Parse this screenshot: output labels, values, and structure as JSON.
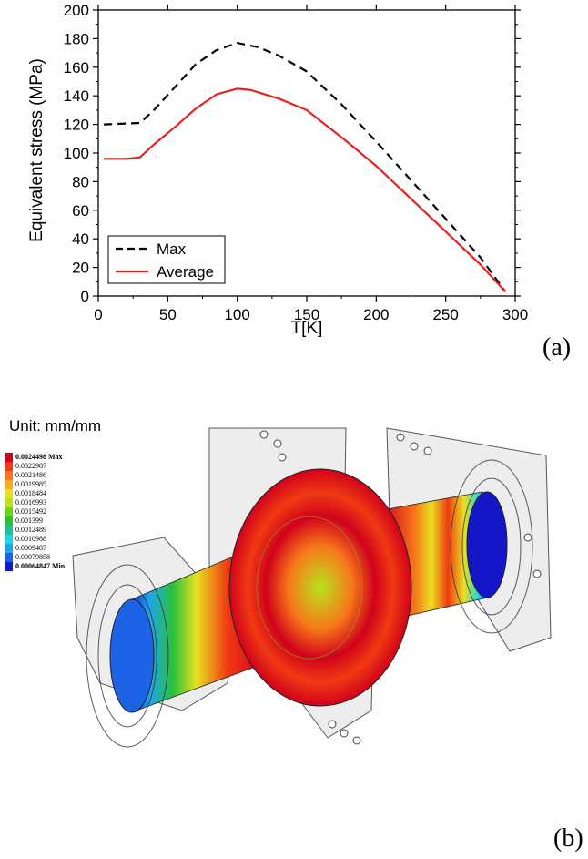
{
  "chart_data": {
    "type": "line",
    "xlabel": "T[K]",
    "ylabel": "Equivalent stress (MPa)",
    "xlim": [
      0,
      300
    ],
    "ylim": [
      0,
      200
    ],
    "xticks": [
      "0",
      "50",
      "100",
      "150",
      "200",
      "250",
      "300"
    ],
    "yticks": [
      "0",
      "20",
      "40",
      "60",
      "80",
      "100",
      "120",
      "140",
      "160",
      "180",
      "200"
    ],
    "legend_position": "bottom-left",
    "series": [
      {
        "name": "Max",
        "style": "dashed",
        "color": "#000000",
        "x": [
          4,
          30,
          40,
          55,
          70,
          85,
          100,
          115,
          130,
          150,
          175,
          200,
          225,
          250,
          275,
          293
        ],
        "y": [
          120,
          121,
          130,
          146,
          162,
          172,
          177,
          174,
          168,
          157,
          134,
          108,
          81,
          54,
          27,
          3
        ]
      },
      {
        "name": "Average",
        "style": "solid",
        "color": "#e8221e",
        "x": [
          4,
          20,
          30,
          40,
          55,
          70,
          85,
          100,
          110,
          130,
          150,
          175,
          200,
          225,
          250,
          275,
          293
        ],
        "y": [
          96,
          96,
          97,
          106,
          118,
          131,
          141,
          145,
          144,
          138,
          130,
          111,
          91,
          68,
          45,
          22,
          3
        ]
      }
    ]
  },
  "panel_a_label": "(a)",
  "panel_b_label": "(b)",
  "unit_label": "Unit: mm/mm",
  "colorbar": {
    "colors": [
      "#d0021b",
      "#f03a12",
      "#f7781a",
      "#f8ad1c",
      "#e9e01f",
      "#b8e31d",
      "#6fd31a",
      "#28c23a",
      "#1ec0a2",
      "#1fd7e4",
      "#1fa3ef",
      "#1c63e6",
      "#1416c8"
    ],
    "labels": [
      "0.0024498 Max",
      "0.0022987",
      "0.0021486",
      "0.0019985",
      "0.0018484",
      "0.0016993",
      "0.0015492",
      "0.001399",
      "0.0012489",
      "0.0010988",
      "0.0009487",
      "0.00079858",
      "0.00064847 Min"
    ]
  }
}
